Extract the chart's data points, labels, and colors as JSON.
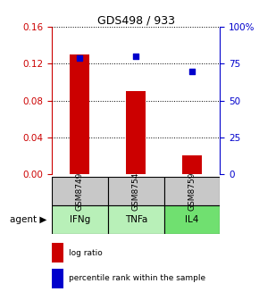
{
  "title": "GDS498 / 933",
  "categories": [
    "GSM8749",
    "GSM8754",
    "GSM8759"
  ],
  "agents": [
    "IFNg",
    "TNFa",
    "IL4"
  ],
  "log_ratios": [
    0.13,
    0.09,
    0.02
  ],
  "percentile_ranks": [
    79.0,
    80.0,
    70.0
  ],
  "bar_color": "#cc0000",
  "dot_color": "#0000cc",
  "left_ylim": [
    0,
    0.16
  ],
  "right_ylim": [
    0,
    100
  ],
  "left_yticks": [
    0,
    0.04,
    0.08,
    0.12,
    0.16
  ],
  "right_yticks": [
    0,
    25,
    50,
    75,
    100
  ],
  "right_yticklabels": [
    "0",
    "25",
    "50",
    "75",
    "100%"
  ],
  "gray_box_color": "#c8c8c8",
  "green_box_color_light": "#b8f0b8",
  "green_box_color_dark": "#70e070",
  "title_color": "#000000",
  "left_axis_color": "#cc0000",
  "right_axis_color": "#0000cc",
  "bar_width": 0.35
}
